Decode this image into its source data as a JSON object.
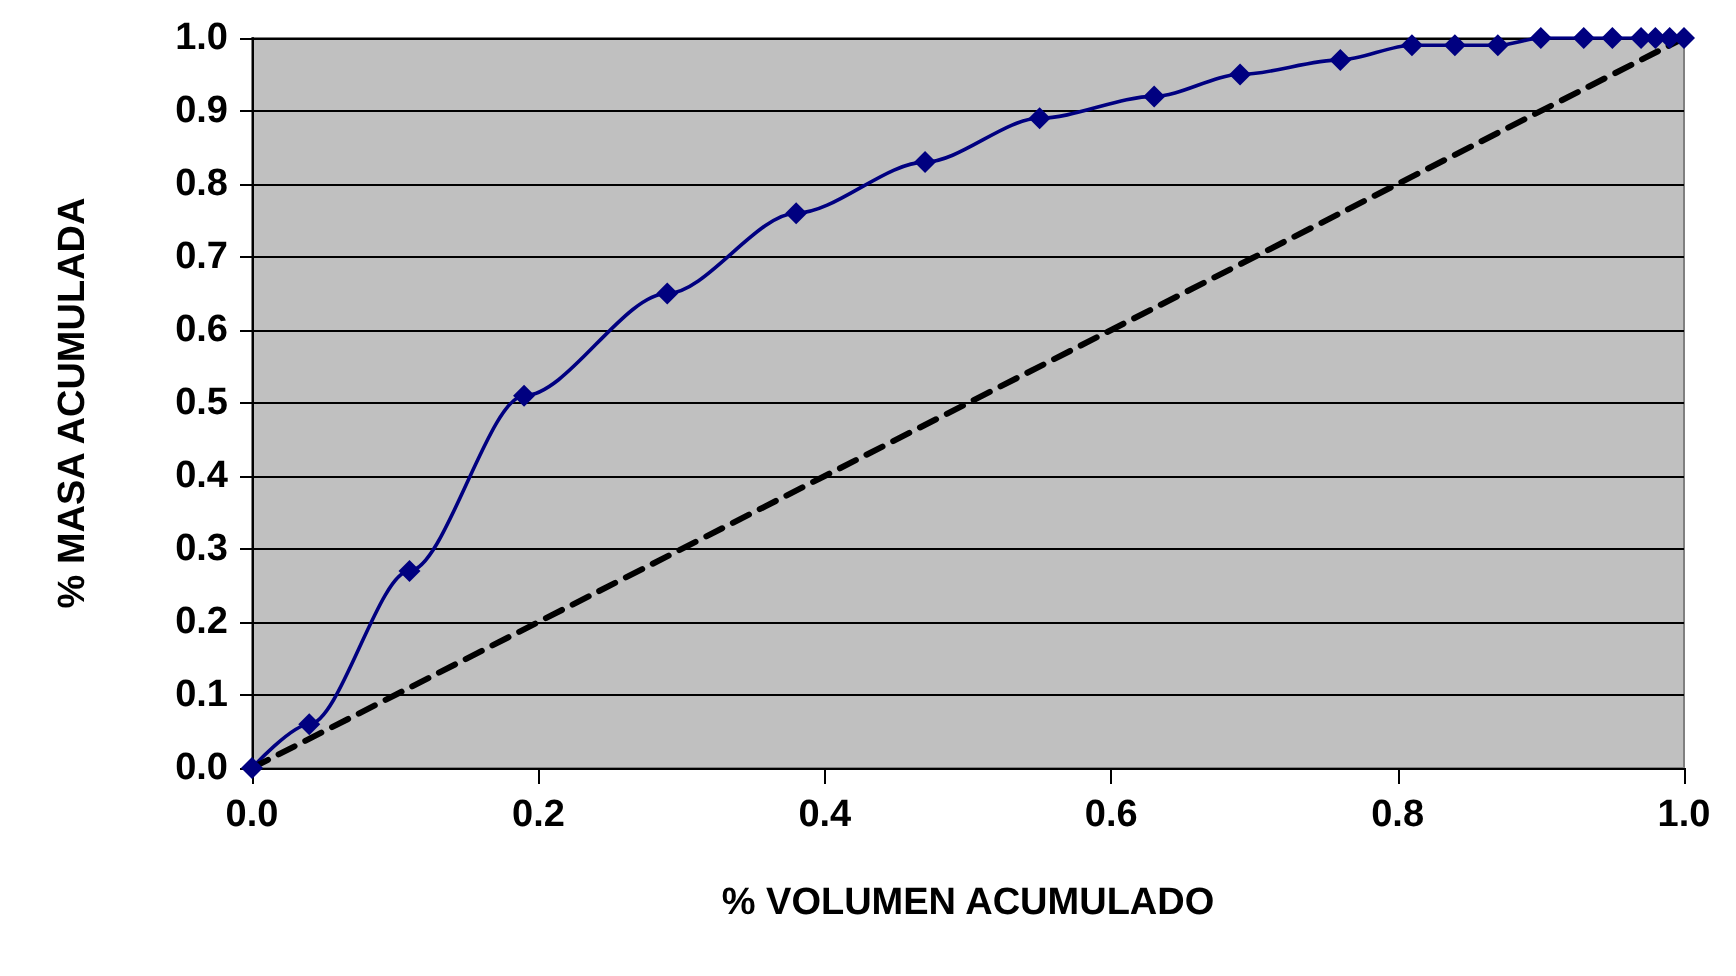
{
  "chart_data": {
    "type": "line",
    "xlabel": "% VOLUMEN ACUMULADO",
    "ylabel": "% MASA ACUMULADA",
    "series": [
      {
        "color": "#000080",
        "marker": "diamond",
        "line_style": "solid",
        "x": [
          0,
          0.04,
          0.11,
          0.19,
          0.29,
          0.38,
          0.47,
          0.55,
          0.63,
          0.69,
          0.76,
          0.81,
          0.84,
          0.87,
          0.9,
          0.93,
          0.95,
          0.97,
          0.98,
          0.99,
          1.0
        ],
        "values": [
          0,
          0.06,
          0.27,
          0.51,
          0.65,
          0.76,
          0.83,
          0.89,
          0.92,
          0.95,
          0.97,
          0.99,
          0.99,
          0.99,
          1.0,
          1.0,
          1.0,
          1.0,
          1.0,
          1.0,
          1.0
        ]
      },
      {
        "color": "#000000",
        "marker": "none",
        "line_style": "dashed",
        "x": [
          0,
          1.0
        ],
        "values": [
          0,
          1.0
        ]
      }
    ],
    "xlim": [
      0,
      1.0
    ],
    "ylim": [
      0,
      1.0
    ],
    "xticks": [
      {
        "value": 0,
        "label": "0.0"
      },
      {
        "value": 0.2,
        "label": "0.2"
      },
      {
        "value": 0.4,
        "label": "0.4"
      },
      {
        "value": 0.6,
        "label": "0.6"
      },
      {
        "value": 0.8,
        "label": "0.8"
      },
      {
        "value": 1.0,
        "label": "1.0"
      }
    ],
    "yticks": [
      {
        "value": 0,
        "label": "0.0"
      },
      {
        "value": 0.1,
        "label": "0.1"
      },
      {
        "value": 0.2,
        "label": "0.2"
      },
      {
        "value": 0.3,
        "label": "0.3"
      },
      {
        "value": 0.4,
        "label": "0.4"
      },
      {
        "value": 0.5,
        "label": "0.5"
      },
      {
        "value": 0.6,
        "label": "0.6"
      },
      {
        "value": 0.7,
        "label": "0.7"
      },
      {
        "value": 0.8,
        "label": "0.8"
      },
      {
        "value": 0.9,
        "label": "0.9"
      },
      {
        "value": 1.0,
        "label": "1.0"
      }
    ],
    "grid": "y"
  }
}
